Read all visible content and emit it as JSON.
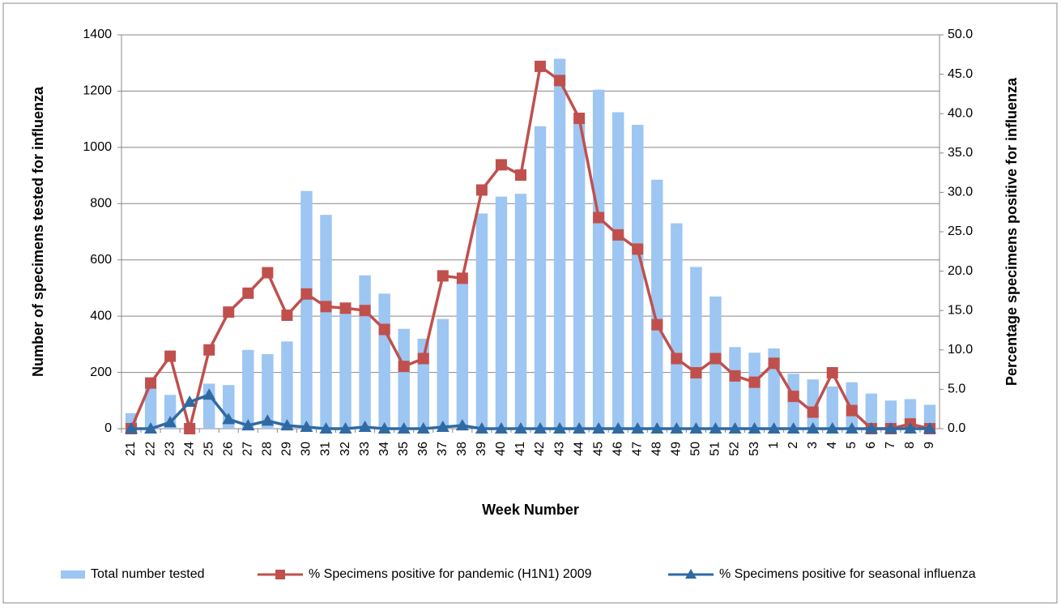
{
  "chart_data": {
    "type": "combo",
    "x_label": "Week Number",
    "y_label": "Number of specimens tested for influenza",
    "y2_label": "Percentage specimens positive for influenza",
    "categories": [
      "21",
      "22",
      "23",
      "24",
      "25",
      "26",
      "27",
      "28",
      "29",
      "30",
      "31",
      "32",
      "33",
      "34",
      "35",
      "36",
      "37",
      "38",
      "39",
      "40",
      "41",
      "42",
      "43",
      "44",
      "45",
      "46",
      "47",
      "48",
      "49",
      "50",
      "51",
      "52",
      "53",
      "1",
      "2",
      "3",
      "4",
      "5",
      "6",
      "7",
      "8",
      "9"
    ],
    "ylim": [
      0,
      1400
    ],
    "yticks": [
      0,
      200,
      400,
      600,
      800,
      1000,
      1200,
      1400
    ],
    "y2lim": [
      0,
      50
    ],
    "y2ticks": [
      {
        "value": 0,
        "label": "0.0"
      },
      {
        "value": 5,
        "label": "5.0"
      },
      {
        "value": 10,
        "label": "10.0"
      },
      {
        "value": 15,
        "label": "15.0"
      },
      {
        "value": 20,
        "label": "20.0"
      },
      {
        "value": 25,
        "label": "25.0"
      },
      {
        "value": 30,
        "label": "30.0"
      },
      {
        "value": 35,
        "label": "35.0"
      },
      {
        "value": 40,
        "label": "40.0"
      },
      {
        "value": 45,
        "label": "45.0"
      },
      {
        "value": 50,
        "label": "50.0"
      }
    ],
    "grid": true,
    "legend": "bottom",
    "series": [
      {
        "name": "Total number tested",
        "type": "bar",
        "color": "#9dc6f2",
        "values": [
          55,
          150,
          120,
          10,
          160,
          155,
          280,
          265,
          310,
          845,
          760,
          410,
          545,
          480,
          355,
          320,
          390,
          520,
          765,
          825,
          835,
          1075,
          1315,
          1090,
          1205,
          1125,
          1080,
          885,
          730,
          575,
          470,
          290,
          270,
          285,
          195,
          175,
          150,
          165,
          125,
          100,
          105,
          85
        ]
      },
      {
        "name": "% Specimens positive for pandemic (H1N1) 2009",
        "type": "line",
        "marker": "square",
        "axis": "y2",
        "color": "#c0504d",
        "values": [
          0,
          5.8,
          9.2,
          0,
          10.0,
          14.8,
          17.2,
          19.8,
          14.4,
          17.1,
          15.5,
          15.3,
          15.0,
          12.6,
          7.9,
          8.9,
          19.4,
          19.1,
          30.3,
          33.5,
          32.2,
          46.0,
          44.2,
          39.4,
          26.8,
          24.6,
          22.8,
          13.2,
          8.9,
          7.1,
          8.9,
          6.7,
          5.9,
          8.3,
          4.1,
          2.1,
          7.1,
          2.3,
          0,
          0,
          0.6,
          0
        ]
      },
      {
        "name": "% Specimens positive for seasonal influenza",
        "type": "line",
        "marker": "triangle",
        "axis": "y2",
        "color": "#2f6aa3",
        "values": [
          0,
          0,
          0.8,
          3.4,
          4.3,
          1.2,
          0.4,
          1.0,
          0.4,
          0.2,
          0,
          0,
          0.2,
          0,
          0,
          0,
          0.2,
          0.4,
          0,
          0,
          0,
          0,
          0,
          0,
          0,
          0,
          0,
          0,
          0,
          0,
          0,
          0,
          0,
          0,
          0,
          0,
          0,
          0,
          0,
          0,
          0,
          0
        ]
      }
    ]
  }
}
